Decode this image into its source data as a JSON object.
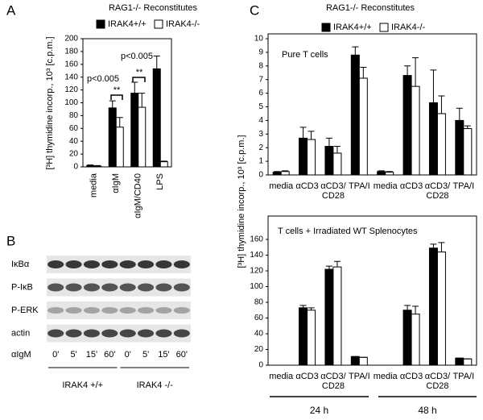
{
  "panels": [
    "A",
    "B",
    "C"
  ],
  "chart_data": [
    {
      "type": "bar",
      "title": "RAG1-/- Reconstitutes",
      "y_label": "[³H] thymidine incorp., 10³ [c.p.m.]",
      "categories": [
        "media",
        "αIgM",
        "αIgM/CD40",
        "LPS"
      ],
      "series": [
        {
          "name": "IRAK4+/+",
          "color": "#000000",
          "values": [
            2,
            92,
            115,
            153
          ],
          "errors": [
            1,
            11,
            17,
            20
          ]
        },
        {
          "name": "IRAK4-/-",
          "color": "#ffffff",
          "values": [
            1,
            62,
            93,
            8
          ],
          "errors": [
            1,
            15,
            22,
            1
          ]
        }
      ],
      "ylim": [
        0,
        200
      ],
      "yticks": [
        0,
        20,
        40,
        60,
        80,
        100,
        120,
        140,
        160,
        180,
        200
      ],
      "legend": true,
      "annotations": [
        "p<0.005",
        "p<0.005",
        "**",
        "**"
      ]
    },
    {
      "type": "bar",
      "title": "RAG1-/- Reconstitutes",
      "y_label": "[³H] thymidine incorp., 10³ [c.p.m.]",
      "categories": [
        "media",
        "αCD3",
        "αCD3/ CD28",
        "TPA/I",
        "media",
        "αCD3",
        "αCD3/ CD28",
        "TPA/I"
      ],
      "series": [
        {
          "name": "IRAK4+/+",
          "color": "#000000",
          "values": [
            0.2,
            2.7,
            2.1,
            8.8,
            0.25,
            7.3,
            5.3,
            4.0
          ],
          "errors": [
            0.05,
            0.8,
            0.6,
            0.6,
            0.05,
            0.7,
            2.4,
            0.9
          ]
        },
        {
          "name": "IRAK4-/-",
          "color": "#ffffff",
          "values": [
            0.25,
            2.6,
            1.6,
            7.1,
            0.2,
            6.5,
            4.5,
            3.4
          ],
          "errors": [
            0.05,
            0.6,
            0.5,
            0.8,
            0.05,
            2.1,
            1.3,
            0.2
          ]
        }
      ],
      "ylim": [
        0,
        10
      ],
      "yticks": [
        0,
        1,
        2,
        3,
        4,
        5,
        6,
        7,
        8,
        9,
        10
      ],
      "legend": true,
      "annotations": [
        "Pure T cells"
      ]
    },
    {
      "type": "bar",
      "categories": [
        "media",
        "αCD3",
        "αCD3/ CD28",
        "TPA/I",
        "media",
        "αCD3",
        "αCD3/ CD28",
        "TPA/I"
      ],
      "series": [
        {
          "color": "#000000",
          "values": [
            null,
            73,
            122,
            11,
            null,
            70,
            149,
            9
          ],
          "errors": [
            null,
            3,
            4,
            0,
            null,
            6,
            5,
            0
          ]
        },
        {
          "color": "#ffffff",
          "values": [
            null,
            70,
            125,
            10,
            null,
            65,
            144,
            8
          ],
          "errors": [
            null,
            3,
            7,
            0,
            null,
            10,
            12,
            0
          ]
        }
      ],
      "ylim": [
        0,
        160
      ],
      "yticks": [
        0,
        20,
        40,
        60,
        80,
        100,
        120,
        140,
        160
      ],
      "legend": false,
      "annotations": [
        "T cells + Irradiated WT Splenocytes"
      ],
      "groups": [
        "24 h",
        "48 h"
      ]
    }
  ],
  "blot": {
    "rows": [
      "IκBα",
      "P-IκB",
      "P-ERK",
      "actin"
    ],
    "treatment": "αIgM",
    "timepoints": [
      "0'",
      "5'",
      "15'",
      "60'",
      "0'",
      "5'",
      "15'",
      "60'"
    ],
    "groups": [
      "IRAK4 +/+",
      "IRAK4 -/-"
    ]
  }
}
